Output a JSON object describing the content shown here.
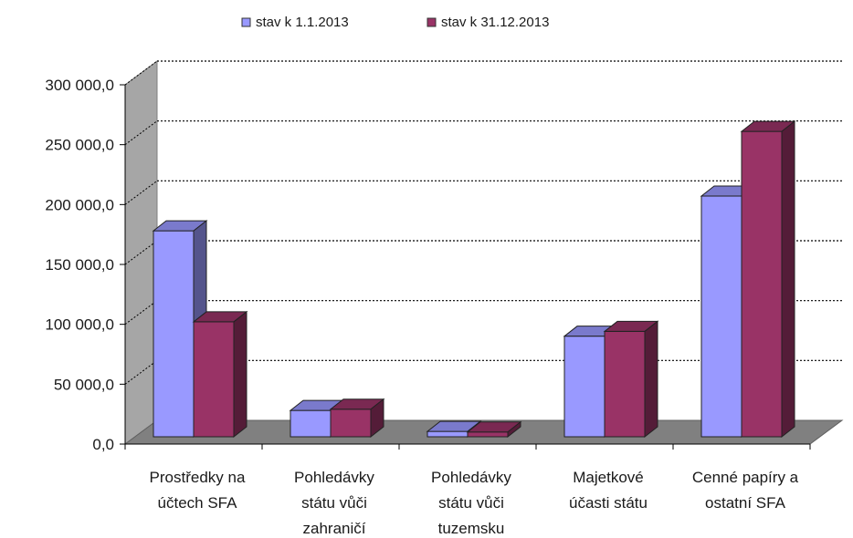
{
  "chart_data": {
    "type": "bar",
    "title": "",
    "xlabel": "",
    "ylabel": "",
    "categories": [
      [
        "Prostředky na",
        "účtech SFA"
      ],
      [
        "Pohledávky",
        "státu vůči",
        "zahraničí"
      ],
      [
        "Pohledávky",
        "státu vůči",
        "tuzemsku"
      ],
      [
        "Majetkové",
        "účasti státu"
      ],
      [
        "Cenné papíry a",
        "ostatní SFA"
      ]
    ],
    "series": [
      {
        "name": "stav k 1.1.2013",
        "color": "#9999ff",
        "values": [
          172000,
          22000,
          4500,
          84000,
          201000
        ]
      },
      {
        "name": "stav k 31.12.2013",
        "color": "#993366",
        "values": [
          96000,
          23000,
          4000,
          88000,
          255000
        ]
      }
    ],
    "ylim": [
      0,
      300000
    ],
    "yticks": [
      0,
      50000,
      100000,
      150000,
      200000,
      250000,
      300000
    ],
    "ytick_labels": [
      "0,0",
      "50 000,0",
      "100 000,0",
      "150 000,0",
      "200 000,0",
      "250 000,0",
      "300 000,0"
    ],
    "grid": true,
    "legend_position": "top",
    "style": "3d-clustered-column",
    "colors": {
      "wall": "#ffffff",
      "floor": "#808080",
      "side_wall": "#a6a6a6",
      "grid": "#000000"
    }
  }
}
